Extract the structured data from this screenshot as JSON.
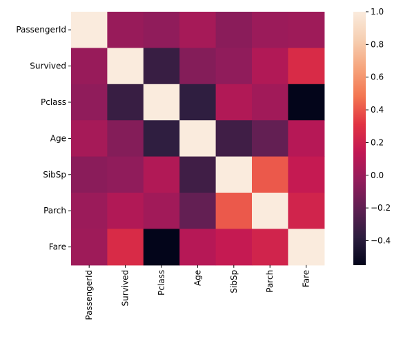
{
  "chart_data": {
    "type": "heatmap",
    "title": "",
    "xlabel": "",
    "ylabel": "",
    "x_categories": [
      "PassengerId",
      "Survived",
      "Pclass",
      "Age",
      "SibSp",
      "Parch",
      "Fare"
    ],
    "y_categories": [
      "PassengerId",
      "Survived",
      "Pclass",
      "Age",
      "SibSp",
      "Parch",
      "Fare"
    ],
    "values": [
      [
        1.0,
        -0.01,
        -0.04,
        0.04,
        -0.06,
        -0.0,
        0.01
      ],
      [
        -0.01,
        1.0,
        -0.34,
        -0.08,
        -0.04,
        0.08,
        0.26
      ],
      [
        -0.04,
        -0.34,
        1.0,
        -0.37,
        0.08,
        0.02,
        -0.55
      ],
      [
        0.04,
        -0.08,
        -0.37,
        1.0,
        -0.31,
        -0.19,
        0.1
      ],
      [
        -0.06,
        -0.04,
        0.08,
        -0.31,
        1.0,
        0.41,
        0.16
      ],
      [
        -0.0,
        0.08,
        0.02,
        -0.19,
        0.41,
        1.0,
        0.22
      ],
      [
        0.01,
        0.26,
        -0.55,
        0.1,
        0.16,
        0.22,
        1.0
      ]
    ],
    "colorbar": {
      "min": -0.55,
      "max": 1.0,
      "ticks": [
        -0.4,
        -0.2,
        0.0,
        0.2,
        0.4,
        0.6,
        0.8,
        1.0
      ],
      "tick_labels": [
        "−0.4",
        "−0.2",
        "0.0",
        "0.2",
        "0.4",
        "0.6",
        "0.8",
        "1.0"
      ],
      "colormap": "rocket",
      "stops": [
        "#03051a",
        "#2d1e3f",
        "#5e1f52",
        "#921c5b",
        "#c11754",
        "#e13342",
        "#f37651",
        "#f6a47c",
        "#f6cfb2",
        "#faebdd"
      ]
    },
    "grid": false,
    "legend": "colorbar-right"
  }
}
